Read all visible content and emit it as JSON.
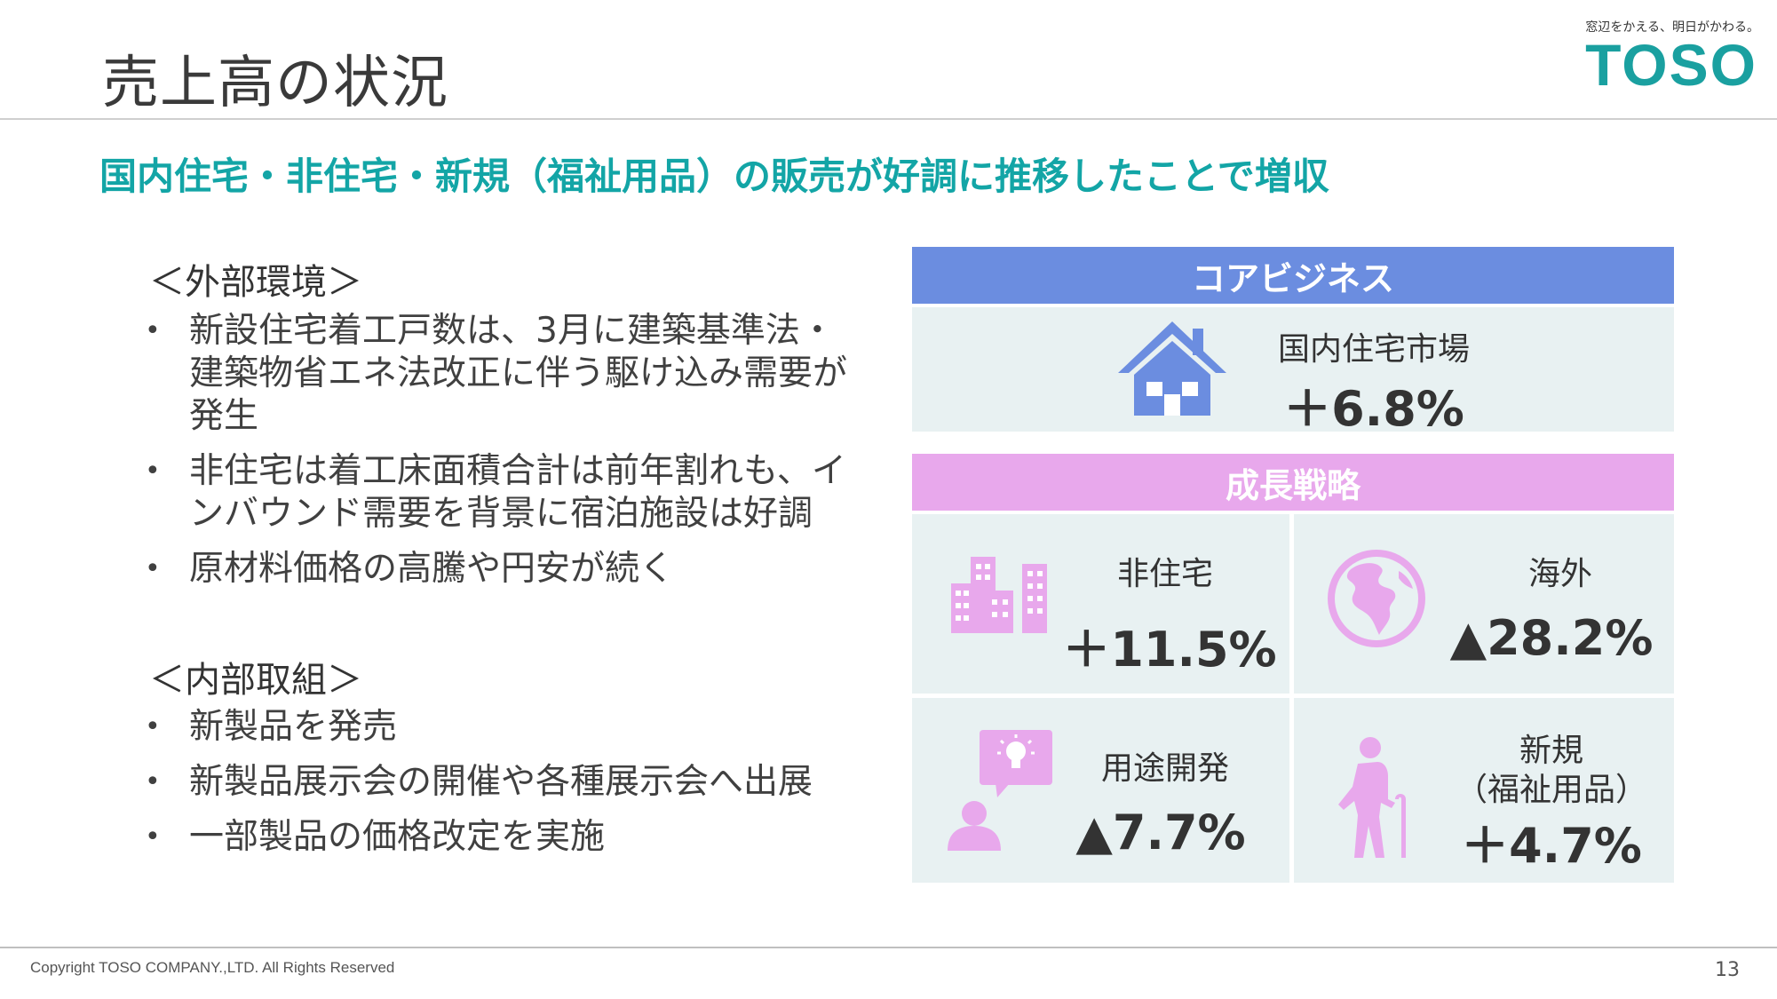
{
  "header": {
    "title": "売上高の状況",
    "tagline": "窓辺をかえる、明日がかわる。",
    "logo": "TOSO"
  },
  "subtitle": "国内住宅・非住宅・新規（福祉用品）の販売が好調に推移したことで増収",
  "external": {
    "heading": "＜外部環境＞",
    "bullets": [
      "新設住宅着工戸数は、3月に建築基準法・建築物省エネ法改正に伴う駆け込み需要が発生",
      "非住宅は着工床面積合計は前年割れも、インバウンド需要を背景に宿泊施設は好調",
      "原材料価格の高騰や円安が続く"
    ]
  },
  "internal": {
    "heading": "＜内部取組＞",
    "bullets": [
      "新製品を発売",
      "新製品展示会の開催や各種展示会へ出展",
      "一部製品の価格改定を実施"
    ]
  },
  "panel": {
    "core": {
      "band_label": "コアビジネス",
      "color": "#6b8de0",
      "item": {
        "label": "国内住宅市場",
        "value": "＋6.8%",
        "icon": "house-icon"
      }
    },
    "growth": {
      "band_label": "成長戦略",
      "color": "#e8a8ec",
      "items": [
        {
          "label": "非住宅",
          "value": "＋11.5%",
          "icon": "buildings-icon"
        },
        {
          "label": "海外",
          "value": "▲28.2%",
          "icon": "globe-icon"
        },
        {
          "label": "用途開発",
          "value": "▲7.7%",
          "icon": "idea-person-icon"
        },
        {
          "label_line1": "新規",
          "label_line2": "（福祉用品）",
          "value": "＋4.7%",
          "icon": "elderly-person-icon"
        }
      ]
    },
    "cell_color": "#e8f1f2"
  },
  "footer": {
    "copyright": "Copyright TOSO COMPANY.,LTD. All Rights Reserved",
    "page_number": "13"
  }
}
